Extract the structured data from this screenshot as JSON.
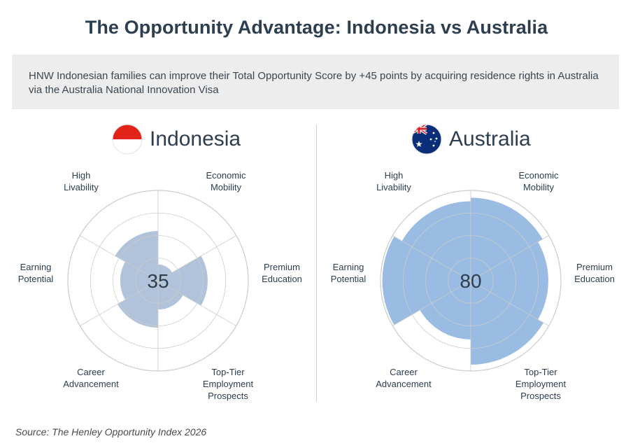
{
  "title": "The Opportunity Advantage: Indonesia vs Australia",
  "callout": "HNW Indonesian families can improve their Total Opportunity Score by +45 points by acquiring residence rights in Australia via the Australia National Innovation Visa",
  "source": "Source: The Henley Opportunity Index 2026",
  "colors": {
    "indonesia_fill": "#a9bdd6",
    "australia_fill": "#8fb5e0",
    "grid": "#cccccc"
  },
  "chart_data": [
    {
      "type": "polar-area",
      "country": "Indonesia",
      "flag": "indonesia-flag-icon",
      "score": "35",
      "categories": [
        "Economic Mobility",
        "Premium Education",
        "Top-Tier Employment Prospects",
        "Career Advancement",
        "Earning Potential",
        "High Livability"
      ],
      "category_lines": [
        [
          "Economic",
          "Mobility"
        ],
        [
          "Premium",
          "Education"
        ],
        [
          "Top-Tier",
          "Employment",
          "Prospects"
        ],
        [
          "Career",
          "Advancement"
        ],
        [
          "Earning",
          "Potential"
        ],
        [
          "High",
          "Livability"
        ]
      ],
      "values": [
        18,
        55,
        32,
        52,
        42,
        55
      ],
      "rlim": [
        0,
        100
      ]
    },
    {
      "type": "polar-area",
      "country": "Australia",
      "flag": "australia-flag-icon",
      "score": "80",
      "categories": [
        "Economic Mobility",
        "Premium Education",
        "Top-Tier Employment Prospects",
        "Career Advancement",
        "Earning Potential",
        "High Livability"
      ],
      "category_lines": [
        [
          "Economic",
          "Mobility"
        ],
        [
          "Premium",
          "Education"
        ],
        [
          "Top-Tier",
          "Employment",
          "Prospects"
        ],
        [
          "Career",
          "Advancement"
        ],
        [
          "Earning",
          "Potential"
        ],
        [
          "High",
          "Livability"
        ]
      ],
      "values": [
        92,
        86,
        93,
        65,
        98,
        88
      ],
      "rlim": [
        0,
        100
      ]
    }
  ]
}
